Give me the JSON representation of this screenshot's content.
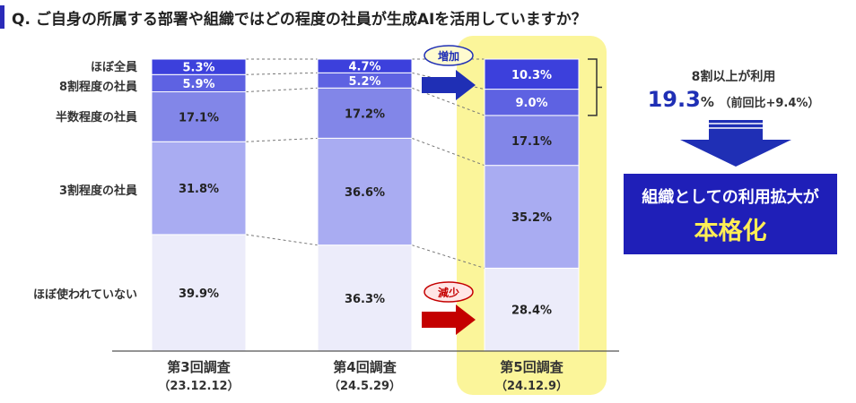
{
  "question": "Q. ご自身の所属する部署や組織ではどの程度の社員が生成AIを活用していますか？",
  "chart_data": {
    "type": "bar",
    "stacked": true,
    "normalized": true,
    "categories": [
      {
        "label": "第3回調査",
        "sub": "（23.12.12）"
      },
      {
        "label": "第4回調査",
        "sub": "（24.5.29）"
      },
      {
        "label": "第5回調査",
        "sub": "（24.12.9）"
      }
    ],
    "highlight_index": 2,
    "series": [
      {
        "name": "ほぼ使われていない",
        "values": [
          39.9,
          36.3,
          28.4
        ],
        "labels": [
          "39.9%",
          "36.3%",
          "28.4%"
        ],
        "color": "#ececfa"
      },
      {
        "name": "3割程度の社員",
        "values": [
          31.8,
          36.6,
          35.2
        ],
        "labels": [
          "31.8%",
          "36.6%",
          "35.2%"
        ],
        "color": "#a9acf2"
      },
      {
        "name": "半数程度の社員",
        "values": [
          17.1,
          17.2,
          17.1
        ],
        "labels": [
          "17.1%",
          "17.2%",
          "17.1%"
        ],
        "color": "#8286e8"
      },
      {
        "name": "8割程度の社員",
        "values": [
          5.9,
          5.2,
          9.0
        ],
        "labels": [
          "5.9%",
          "5.2%",
          "9.0%"
        ],
        "color": "#5e62e2"
      },
      {
        "name": "ほぼ全員",
        "values": [
          5.3,
          4.7,
          10.3
        ],
        "labels": [
          "5.3%",
          "4.7%",
          "10.3%"
        ],
        "color": "#3c40dc"
      }
    ],
    "ylim": [
      0,
      100
    ],
    "annotations": {
      "increase": "増加",
      "decrease": "減少"
    }
  },
  "summary": {
    "note_line1": "8割以上が利用",
    "value": "19.3",
    "unit": "%",
    "comparison": "（前回比+9.4%）",
    "result_line1": "組織としての利用拡大が",
    "result_line2": "本格化"
  },
  "colors": {
    "highlight_bg": "#fbf59a",
    "arrow_up": "#1f2fb5",
    "arrow_down": "#c40000",
    "badge_up_border": "#1f2fb5",
    "badge_down_border": "#c40000",
    "result_bg": "#1f1fb8"
  }
}
